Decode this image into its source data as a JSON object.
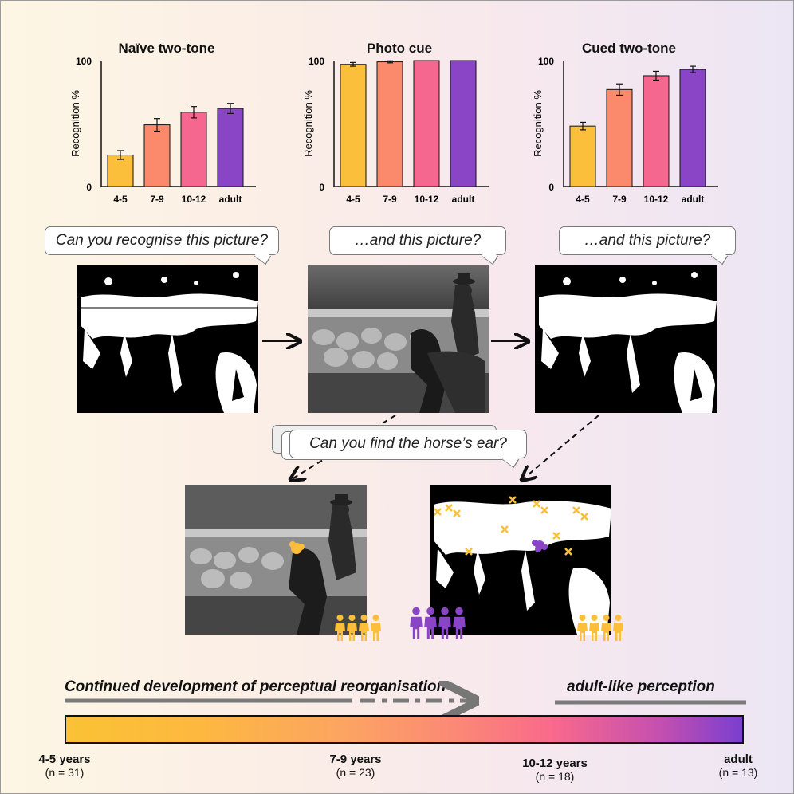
{
  "charts": [
    {
      "title": "Naïve two-tone",
      "ylabel": "Recognition %",
      "ytick_top": "100",
      "ytick_bottom": "0",
      "categories": [
        "4-5",
        "7-9",
        "10-12",
        "adult"
      ],
      "values": [
        25,
        49,
        59,
        62
      ],
      "errors": [
        3.5,
        5,
        4.5,
        4
      ]
    },
    {
      "title": "Photo cue",
      "ylabel": "Recognition %",
      "ytick_top": "100",
      "ytick_bottom": "0",
      "categories": [
        "4-5",
        "7-9",
        "10-12",
        "adult"
      ],
      "values": [
        97,
        99,
        100,
        100
      ],
      "errors": [
        1.5,
        0.8,
        0,
        0
      ]
    },
    {
      "title": "Cued two-tone",
      "ylabel": "Recognition %",
      "ytick_top": "100",
      "ytick_bottom": "0",
      "categories": [
        "4-5",
        "7-9",
        "10-12",
        "adult"
      ],
      "values": [
        48,
        77,
        88,
        93
      ],
      "errors": [
        3,
        4.5,
        3.5,
        2.5
      ]
    }
  ],
  "chart_data": [
    {
      "type": "bar",
      "title": "Naïve two-tone",
      "ylabel": "Recognition %",
      "ylim": [
        0,
        100
      ],
      "categories": [
        "4-5",
        "7-9",
        "10-12",
        "adult"
      ],
      "values": [
        25,
        49,
        59,
        62
      ]
    },
    {
      "type": "bar",
      "title": "Photo cue",
      "ylabel": "Recognition %",
      "ylim": [
        0,
        100
      ],
      "categories": [
        "4-5",
        "7-9",
        "10-12",
        "adult"
      ],
      "values": [
        97,
        99,
        100,
        100
      ]
    },
    {
      "type": "bar",
      "title": "Cued two-tone",
      "ylabel": "Recognition %",
      "ylim": [
        0,
        100
      ],
      "categories": [
        "4-5",
        "7-9",
        "10-12",
        "adult"
      ],
      "values": [
        48,
        77,
        88,
        93
      ]
    }
  ],
  "colors": {
    "age_4_5": "#fbbf3c",
    "age_7_9": "#fa8a6b",
    "age_10_12": "#f6678f",
    "adult": "#8a45c6"
  },
  "bubbles": {
    "q1": "Can you recognise this picture?",
    "q2": "…and this picture?",
    "q3": "…and this picture?",
    "q4": "Can you find the horse’s ear?"
  },
  "development": {
    "left_label": "Continued development of perceptual reorganisation",
    "right_label": "adult-like perception"
  },
  "ages": [
    {
      "name": "4-5 years",
      "n": "(n = 31)"
    },
    {
      "name": "7-9 years",
      "n": "(n = 23)"
    },
    {
      "name": "10-12 years",
      "n": "(n = 18)"
    },
    {
      "name": "adult",
      "n": "(n = 13)"
    }
  ]
}
